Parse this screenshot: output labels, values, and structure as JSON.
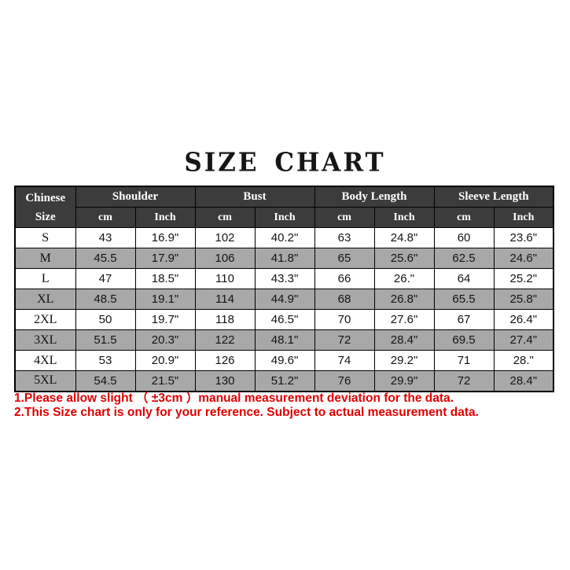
{
  "title": "SIZE CHART",
  "chart_data": {
    "type": "table",
    "title": "SIZE CHART",
    "corner": {
      "line1": "Chinese",
      "line2": "Size"
    },
    "groups": [
      "Shoulder",
      "Bust",
      "Body Length",
      "Sleeve Length"
    ],
    "subheaders": [
      "cm",
      "Inch"
    ],
    "columns": [
      "Chinese Size",
      "Shoulder cm",
      "Shoulder Inch",
      "Bust cm",
      "Bust Inch",
      "Body Length cm",
      "Body Length Inch",
      "Sleeve Length cm",
      "Sleeve Length Inch"
    ],
    "rows": [
      {
        "size": "S",
        "values": [
          "43",
          "16.9\"",
          "102",
          "40.2\"",
          "63",
          "24.8\"",
          "60",
          "23.6\""
        ]
      },
      {
        "size": "M",
        "values": [
          "45.5",
          "17.9\"",
          "106",
          "41.8\"",
          "65",
          "25.6\"",
          "62.5",
          "24.6\""
        ]
      },
      {
        "size": "L",
        "values": [
          "47",
          "18.5\"",
          "110",
          "43.3\"",
          "66",
          "26.\"",
          "64",
          "25.2\""
        ]
      },
      {
        "size": "XL",
        "values": [
          "48.5",
          "19.1\"",
          "114",
          "44.9\"",
          "68",
          "26.8\"",
          "65.5",
          "25.8\""
        ]
      },
      {
        "size": "2XL",
        "values": [
          "50",
          "19.7\"",
          "118",
          "46.5\"",
          "70",
          "27.6\"",
          "67",
          "26.4\""
        ]
      },
      {
        "size": "3XL",
        "values": [
          "51.5",
          "20.3\"",
          "122",
          "48.1\"",
          "72",
          "28.4\"",
          "69.5",
          "27.4\""
        ]
      },
      {
        "size": "4XL",
        "values": [
          "53",
          "20.9\"",
          "126",
          "49.6\"",
          "74",
          "29.2\"",
          "71",
          "28.\""
        ]
      },
      {
        "size": "5XL",
        "values": [
          "54.5",
          "21.5\"",
          "130",
          "51.2\"",
          "76",
          "29.9\"",
          "72",
          "28.4\""
        ]
      }
    ]
  },
  "notes": [
    "1.Please allow slight （ ±3cm ）manual measurement deviation for the data.",
    "2.This Size chart is only for your reference. Subject to actual measurement data."
  ],
  "colors": {
    "header_bg": "#3c3c3c",
    "header_text": "#ffffff",
    "row_white_bg": "#ffffff",
    "row_gray_bg": "#a8a8a8",
    "border": "#000000",
    "note_text": "#e00000",
    "title_text": "#161616"
  }
}
